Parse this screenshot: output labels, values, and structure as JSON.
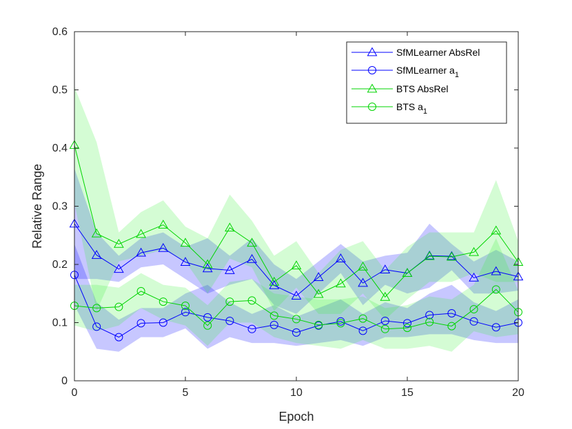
{
  "chart_data": {
    "type": "line",
    "xlabel": "Epoch",
    "ylabel": "Relative Range",
    "xlim": [
      0,
      20
    ],
    "ylim": [
      0,
      0.6
    ],
    "xticks": [
      0,
      5,
      10,
      15,
      20
    ],
    "yticks": [
      0,
      0.1,
      0.2,
      0.3,
      0.4,
      0.5,
      0.6
    ],
    "ytick_labels": [
      "0",
      "0.1",
      "0.2",
      "0.3",
      "0.4",
      "0.5",
      "0.6"
    ],
    "legend_location": "top-right",
    "x": [
      0,
      1,
      2,
      3,
      4,
      5,
      6,
      7,
      8,
      9,
      10,
      11,
      12,
      13,
      14,
      15,
      16,
      17,
      18,
      19,
      20
    ],
    "series": [
      {
        "name": "SfMLearner AbsRel",
        "legend_text": "SfMLearner AbsRel",
        "legend_sub": "",
        "color": "#0000ff",
        "band_color": "#0000ff",
        "marker": "triangle",
        "values": [
          0.27,
          0.216,
          0.192,
          0.22,
          0.228,
          0.204,
          0.193,
          0.19,
          0.209,
          0.164,
          0.146,
          0.178,
          0.21,
          0.168,
          0.191,
          0.185,
          0.215,
          0.214,
          0.177,
          0.188,
          0.179
        ],
        "upper": [
          0.365,
          0.255,
          0.215,
          0.245,
          0.255,
          0.23,
          0.245,
          0.215,
          0.245,
          0.2,
          0.175,
          0.205,
          0.235,
          0.205,
          0.215,
          0.22,
          0.27,
          0.235,
          0.205,
          0.225,
          0.205
        ],
        "lower": [
          0.175,
          0.175,
          0.17,
          0.195,
          0.2,
          0.175,
          0.15,
          0.165,
          0.175,
          0.13,
          0.115,
          0.15,
          0.185,
          0.13,
          0.165,
          0.15,
          0.16,
          0.19,
          0.15,
          0.15,
          0.155
        ]
      },
      {
        "name": "SfMLearner a1",
        "legend_text": "SfMLearner a",
        "legend_sub": "1",
        "color": "#0000ff",
        "band_color": "#0000ff",
        "marker": "circle",
        "values": [
          0.182,
          0.093,
          0.075,
          0.099,
          0.1,
          0.118,
          0.109,
          0.103,
          0.089,
          0.096,
          0.083,
          0.095,
          0.102,
          0.086,
          0.103,
          0.099,
          0.113,
          0.116,
          0.102,
          0.092,
          0.1
        ],
        "upper": [
          0.235,
          0.135,
          0.105,
          0.125,
          0.125,
          0.15,
          0.165,
          0.135,
          0.115,
          0.13,
          0.11,
          0.125,
          0.14,
          0.115,
          0.135,
          0.125,
          0.15,
          0.165,
          0.135,
          0.12,
          0.14
        ],
        "lower": [
          0.13,
          0.055,
          0.05,
          0.075,
          0.075,
          0.09,
          0.055,
          0.075,
          0.065,
          0.065,
          0.06,
          0.065,
          0.07,
          0.06,
          0.075,
          0.075,
          0.08,
          0.08,
          0.07,
          0.065,
          0.065
        ]
      },
      {
        "name": "BTS AbsRel",
        "legend_text": "BTS AbsRel",
        "legend_sub": "",
        "color": "#00d400",
        "band_color": "#3cf03c",
        "marker": "triangle",
        "values": [
          0.405,
          0.253,
          0.235,
          0.252,
          0.268,
          0.237,
          0.2,
          0.263,
          0.237,
          0.17,
          0.198,
          0.149,
          0.167,
          0.196,
          0.144,
          0.185,
          0.214,
          0.213,
          0.221,
          0.258,
          0.204
        ],
        "upper": [
          0.505,
          0.41,
          0.255,
          0.29,
          0.31,
          0.265,
          0.245,
          0.32,
          0.275,
          0.215,
          0.24,
          0.185,
          0.225,
          0.24,
          0.19,
          0.23,
          0.255,
          0.255,
          0.255,
          0.345,
          0.24
        ],
        "lower": [
          0.305,
          0.12,
          0.205,
          0.215,
          0.225,
          0.205,
          0.15,
          0.21,
          0.195,
          0.12,
          0.16,
          0.115,
          0.115,
          0.15,
          0.105,
          0.14,
          0.17,
          0.17,
          0.185,
          0.17,
          0.17
        ]
      },
      {
        "name": "BTS a1",
        "legend_text": "BTS a",
        "legend_sub": "1",
        "color": "#00d400",
        "band_color": "#3cf03c",
        "marker": "circle",
        "values": [
          0.129,
          0.125,
          0.127,
          0.154,
          0.136,
          0.129,
          0.095,
          0.136,
          0.138,
          0.112,
          0.106,
          0.096,
          0.099,
          0.107,
          0.089,
          0.091,
          0.101,
          0.094,
          0.123,
          0.157,
          0.118
        ],
        "upper": [
          0.165,
          0.165,
          0.16,
          0.185,
          0.165,
          0.16,
          0.13,
          0.17,
          0.175,
          0.15,
          0.145,
          0.14,
          0.14,
          0.145,
          0.125,
          0.13,
          0.145,
          0.14,
          0.165,
          0.245,
          0.155
        ],
        "lower": [
          0.095,
          0.085,
          0.095,
          0.125,
          0.105,
          0.095,
          0.06,
          0.1,
          0.1,
          0.075,
          0.065,
          0.06,
          0.055,
          0.07,
          0.055,
          0.055,
          0.06,
          0.05,
          0.085,
          0.075,
          0.08
        ]
      }
    ]
  }
}
